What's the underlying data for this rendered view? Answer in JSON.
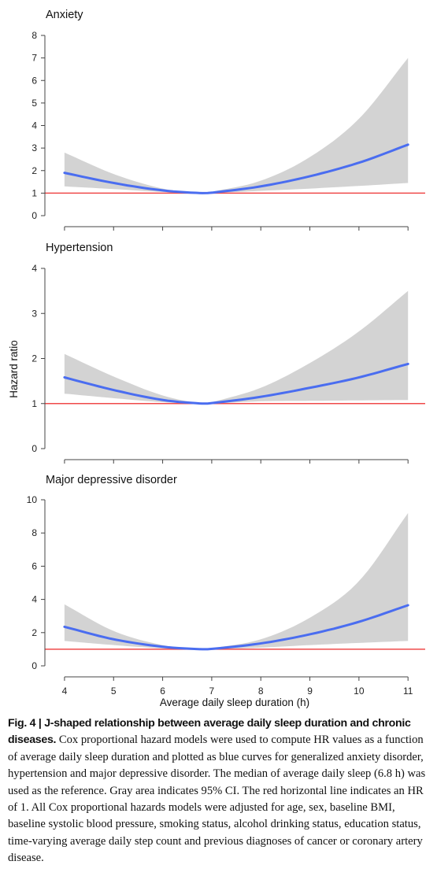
{
  "chart_data": [
    {
      "type": "line",
      "title": "Anxiety",
      "ylim": [
        0,
        8
      ],
      "yticks": [
        0,
        1,
        2,
        3,
        4,
        5,
        6,
        7,
        8
      ],
      "xlim": [
        3.6,
        11.35
      ],
      "xticks": [
        4,
        5,
        6,
        7,
        8,
        9,
        10,
        11
      ],
      "reference_line": 1,
      "series": [
        {
          "role": "hazard_ratio_curve",
          "x": [
            4,
            5,
            6,
            6.8,
            7,
            8,
            9,
            10,
            11
          ],
          "y": [
            1.9,
            1.45,
            1.12,
            1.0,
            1.02,
            1.3,
            1.75,
            2.35,
            3.15
          ]
        },
        {
          "role": "ci_95",
          "x": [
            4,
            5,
            6,
            6.8,
            7,
            8,
            9,
            10,
            11
          ],
          "lower": [
            1.3,
            1.18,
            1.05,
            1.0,
            1.0,
            1.1,
            1.2,
            1.32,
            1.45
          ],
          "upper": [
            2.8,
            1.85,
            1.2,
            1.0,
            1.06,
            1.55,
            2.6,
            4.3,
            7.0
          ]
        }
      ]
    },
    {
      "type": "line",
      "title": "Hypertension",
      "ylim": [
        0,
        4
      ],
      "yticks": [
        0,
        1,
        2,
        3,
        4
      ],
      "xlim": [
        3.6,
        11.35
      ],
      "xticks": [
        4,
        5,
        6,
        7,
        8,
        9,
        10,
        11
      ],
      "reference_line": 1,
      "series": [
        {
          "role": "hazard_ratio_curve",
          "x": [
            4,
            5,
            6,
            6.8,
            7,
            8,
            9,
            10,
            11
          ],
          "y": [
            1.58,
            1.3,
            1.08,
            1.0,
            1.01,
            1.15,
            1.35,
            1.58,
            1.88
          ]
        },
        {
          "role": "ci_95",
          "x": [
            4,
            5,
            6,
            6.8,
            7,
            8,
            9,
            10,
            11
          ],
          "lower": [
            1.22,
            1.12,
            1.03,
            1.0,
            1.0,
            1.05,
            1.06,
            1.07,
            1.08
          ],
          "upper": [
            2.1,
            1.6,
            1.18,
            1.0,
            1.03,
            1.35,
            1.9,
            2.6,
            3.5
          ]
        }
      ]
    },
    {
      "type": "line",
      "title": "Major depressive disorder",
      "ylim": [
        0,
        10
      ],
      "yticks": [
        0,
        2,
        4,
        6,
        8,
        10
      ],
      "xlim": [
        3.6,
        11.35
      ],
      "xticks": [
        4,
        5,
        6,
        7,
        8,
        9,
        10,
        11
      ],
      "reference_line": 1,
      "xlabel": "Average daily sleep duration (h)",
      "series": [
        {
          "role": "hazard_ratio_curve",
          "x": [
            4,
            5,
            6,
            6.8,
            7,
            8,
            9,
            10,
            11
          ],
          "y": [
            2.35,
            1.6,
            1.15,
            1.0,
            1.02,
            1.35,
            1.9,
            2.65,
            3.65
          ]
        },
        {
          "role": "ci_95",
          "x": [
            4,
            5,
            6,
            6.8,
            7,
            8,
            9,
            10,
            11
          ],
          "lower": [
            1.5,
            1.25,
            1.05,
            1.0,
            1.0,
            1.1,
            1.25,
            1.38,
            1.5
          ],
          "upper": [
            3.7,
            2.1,
            1.25,
            1.0,
            1.06,
            1.6,
            2.9,
            5.1,
            9.2
          ]
        }
      ]
    }
  ],
  "shared_ylabel": "Hazard ratio",
  "colors": {
    "curve": "#4a6df0",
    "ci": "#d3d3d3",
    "reference": "#ef4a4a",
    "axis": "#444444"
  },
  "caption": {
    "label": "Fig. 4 | J-shaped relationship between average daily sleep duration and chronic diseases.",
    "text": " Cox proportional hazard models were used to compute HR values as a function of average daily sleep duration and plotted as blue curves for generalized anxiety disorder, hypertension and major depressive disorder. The median of average daily sleep (6.8 h) was used as the reference. Gray area indicates 95% CI. The red horizontal line indicates an HR of 1. All Cox proportional hazards models were adjusted for age, sex, baseline BMI, baseline systolic blood pressure, smoking status, alcohol drinking status, education status, time-varying average daily step count and previous diagnoses of cancer or coronary artery disease."
  }
}
